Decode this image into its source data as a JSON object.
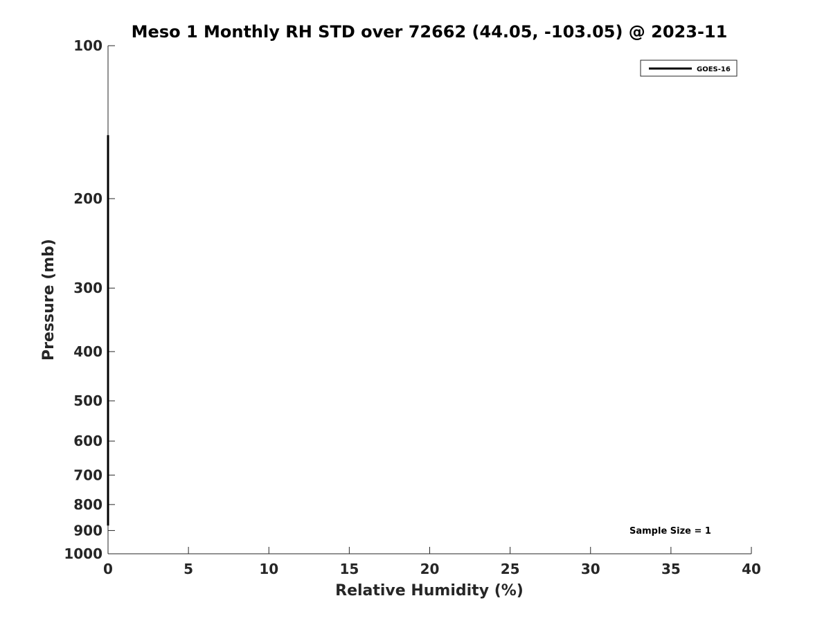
{
  "chart_data": {
    "type": "line",
    "title": "Meso 1 Monthly RH STD over 72662 (44.05, -103.05) @ 2023-11",
    "xlabel": "Relative Humidity (%)",
    "ylabel": "Pressure (mb)",
    "xlim": [
      0,
      40
    ],
    "ylim": [
      100,
      1000
    ],
    "y_scale": "log",
    "y_reversed": true,
    "x_ticks": [
      0,
      5,
      10,
      15,
      20,
      25,
      30,
      35,
      40
    ],
    "y_ticks": [
      100,
      200,
      300,
      400,
      500,
      600,
      700,
      800,
      900,
      1000
    ],
    "grid": false,
    "legend_position": "top-right",
    "series": [
      {
        "name": "GOES-16",
        "color": "#000000",
        "points": [
          {
            "x": 0,
            "y": 150
          },
          {
            "x": 0,
            "y": 200
          },
          {
            "x": 0,
            "y": 300
          },
          {
            "x": 0,
            "y": 400
          },
          {
            "x": 0,
            "y": 500
          },
          {
            "x": 0,
            "y": 600
          },
          {
            "x": 0,
            "y": 700
          },
          {
            "x": 0,
            "y": 800
          },
          {
            "x": 0,
            "y": 880
          }
        ]
      }
    ],
    "annotation": "Sample Size = 1"
  }
}
